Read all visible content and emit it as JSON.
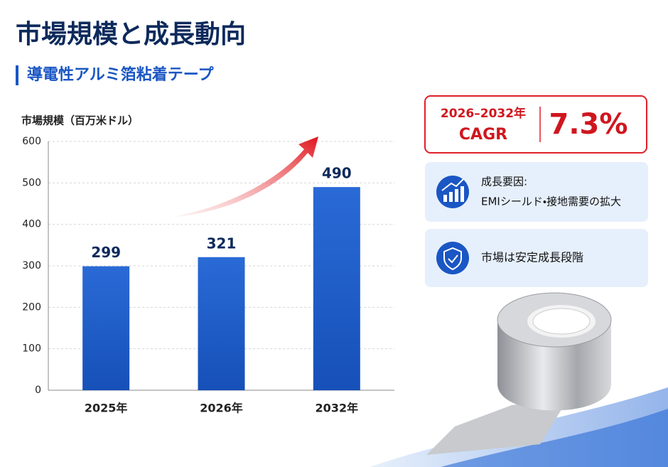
{
  "chart_data": {
    "type": "bar",
    "title": "市場規模と成長動向",
    "subtitle": "導電性アルミ箔粘着テープ",
    "y_label": "市場規模（百万米ドル）",
    "categories": [
      "2025年",
      "2026年",
      "2032年"
    ],
    "values": [
      299,
      321,
      490
    ],
    "color": "#1f5fc9",
    "ylim": [
      0,
      600
    ],
    "yticks": [
      0,
      100,
      200,
      300,
      400,
      500,
      600
    ],
    "grid": true
  },
  "cagr": {
    "period": "2026–2032年",
    "label": "CAGR",
    "value": "7.3%"
  },
  "cards": [
    {
      "title": "成長要因:",
      "text": "EMIシールド・接地需要の拡大"
    },
    {
      "text": "市場は安定成長段階"
    }
  ]
}
